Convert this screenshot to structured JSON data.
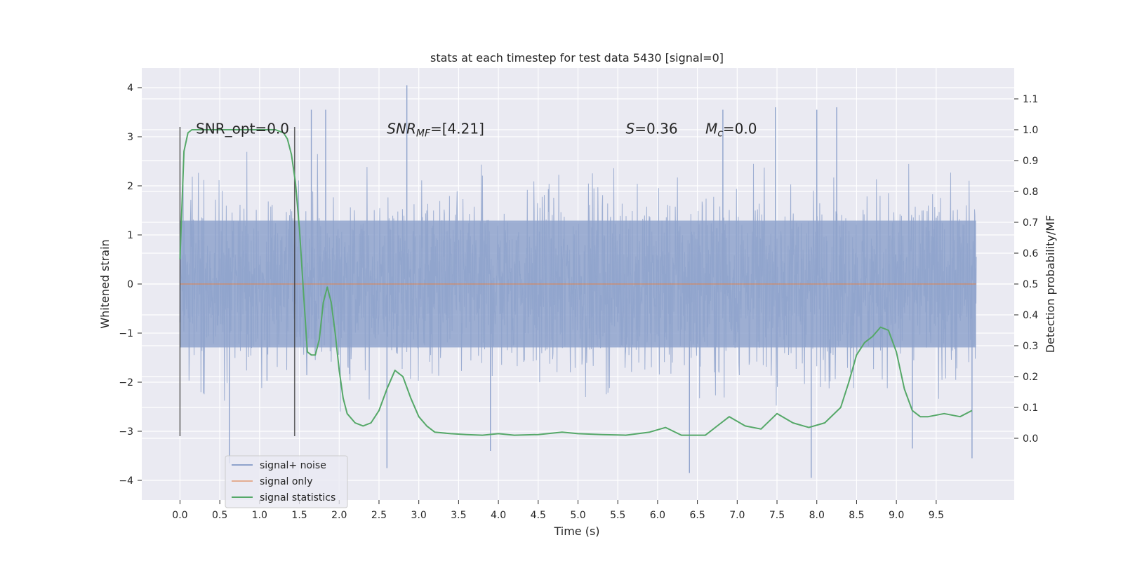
{
  "chart_data": {
    "type": "line",
    "title": "stats at each timestep for test data 5430 [signal=0]",
    "xlabel": "Time (s)",
    "ylabel_left": "Whitened strain",
    "ylabel_right": "Detection probability/MF",
    "xlim": [
      -0.48,
      10.48
    ],
    "ylim_left": [
      -4.4,
      4.4
    ],
    "ylim_right": [
      -0.2,
      1.2
    ],
    "xticks": [
      0.0,
      0.5,
      1.0,
      1.5,
      2.0,
      2.5,
      3.0,
      3.5,
      4.0,
      4.5,
      5.0,
      5.5,
      6.0,
      6.5,
      7.0,
      7.5,
      8.0,
      8.5,
      9.0,
      9.5
    ],
    "xtick_labels": [
      "0.0",
      "0.5",
      "1.0",
      "1.5",
      "2.0",
      "2.5",
      "3.0",
      "3.5",
      "4.0",
      "4.5",
      "5.0",
      "5.5",
      "6.0",
      "6.5",
      "7.0",
      "7.5",
      "8.0",
      "8.5",
      "9.0",
      "9.5"
    ],
    "yticks_left": [
      4,
      3,
      2,
      1,
      0,
      -1,
      -2,
      -3,
      -4
    ],
    "ytick_labels_left": [
      "4",
      "3",
      "2",
      "1",
      "0",
      "−1",
      "−2",
      "−3",
      "−4"
    ],
    "yticks_right": [
      1.1,
      1.0,
      0.9,
      0.8,
      0.7,
      0.6,
      0.5,
      0.4,
      0.3,
      0.2,
      0.1,
      0.0
    ],
    "ytick_labels_right": [
      "1.1",
      "1.0",
      "0.9",
      "0.8",
      "0.7",
      "0.6",
      "0.5",
      "0.4",
      "0.3",
      "0.2",
      "0.1",
      "0.0"
    ],
    "grid": true,
    "legend_position": "lower-left",
    "annotations": [
      {
        "x": 0.2,
        "y": 3.15,
        "label": "SNR_opt=0.0"
      },
      {
        "x": 2.6,
        "y": 3.15,
        "label": "SNR_MF=[4.21]"
      },
      {
        "x": 5.6,
        "y": 3.15,
        "label": "S=0.36"
      },
      {
        "x": 6.6,
        "y": 3.15,
        "label": "M_c=0.0"
      }
    ],
    "vlines": [
      {
        "x": 0.0,
        "y_from": -3.1,
        "y_to": 3.2
      },
      {
        "x": 1.44,
        "y_from": -3.1,
        "y_to": 3.2
      }
    ],
    "series": [
      {
        "name": "signal+ noise",
        "color": "#8fa3cc",
        "axis": "left",
        "x_range": [
          0.0,
          10.0
        ],
        "envelope_typical": [
          -1.9,
          1.9
        ],
        "extremes": [
          {
            "x": 2.85,
            "y": 4.05
          },
          {
            "x": 1.65,
            "y": 3.55
          },
          {
            "x": 1.83,
            "y": 3.55
          },
          {
            "x": 7.48,
            "y": 3.6
          },
          {
            "x": 6.82,
            "y": 3.55
          },
          {
            "x": 8.0,
            "y": 3.55
          },
          {
            "x": 8.25,
            "y": 3.6
          },
          {
            "x": 0.62,
            "y": -3.65
          },
          {
            "x": 2.6,
            "y": -3.75
          },
          {
            "x": 6.4,
            "y": -3.85
          },
          {
            "x": 7.93,
            "y": -3.95
          },
          {
            "x": 9.95,
            "y": -3.55
          },
          {
            "x": 3.9,
            "y": -3.4
          },
          {
            "x": 9.2,
            "y": -3.35
          }
        ]
      },
      {
        "name": "signal only",
        "color": "#dd8452",
        "axis": "left",
        "x": [
          0.0,
          10.0
        ],
        "y": [
          0.0,
          0.0
        ]
      },
      {
        "name": "signal statistics",
        "color": "#55a868",
        "axis": "right",
        "x": [
          0.0,
          0.05,
          0.1,
          0.15,
          0.2,
          0.3,
          0.5,
          0.8,
          1.0,
          1.2,
          1.3,
          1.35,
          1.4,
          1.45,
          1.5,
          1.55,
          1.6,
          1.65,
          1.7,
          1.75,
          1.8,
          1.85,
          1.9,
          1.95,
          2.0,
          2.05,
          2.1,
          2.2,
          2.3,
          2.4,
          2.5,
          2.6,
          2.7,
          2.8,
          2.9,
          3.0,
          3.1,
          3.2,
          3.4,
          3.6,
          3.8,
          4.0,
          4.2,
          4.5,
          4.8,
          5.0,
          5.3,
          5.6,
          5.9,
          6.1,
          6.3,
          6.6,
          6.8,
          6.9,
          7.1,
          7.3,
          7.5,
          7.7,
          7.9,
          8.1,
          8.3,
          8.4,
          8.5,
          8.6,
          8.7,
          8.8,
          8.9,
          9.0,
          9.1,
          9.2,
          9.3,
          9.4,
          9.6,
          9.8,
          9.95
        ],
        "y": [
          0.58,
          0.93,
          0.99,
          1.0,
          1.0,
          1.0,
          1.0,
          1.0,
          1.0,
          1.0,
          0.99,
          0.97,
          0.92,
          0.83,
          0.68,
          0.48,
          0.28,
          0.27,
          0.27,
          0.32,
          0.44,
          0.49,
          0.44,
          0.34,
          0.22,
          0.13,
          0.08,
          0.05,
          0.04,
          0.05,
          0.09,
          0.16,
          0.22,
          0.2,
          0.13,
          0.07,
          0.04,
          0.02,
          0.015,
          0.012,
          0.01,
          0.015,
          0.01,
          0.012,
          0.02,
          0.015,
          0.012,
          0.01,
          0.02,
          0.035,
          0.01,
          0.01,
          0.05,
          0.07,
          0.04,
          0.03,
          0.08,
          0.05,
          0.035,
          0.05,
          0.1,
          0.18,
          0.27,
          0.31,
          0.33,
          0.36,
          0.35,
          0.28,
          0.16,
          0.09,
          0.07,
          0.07,
          0.08,
          0.07,
          0.09
        ]
      }
    ]
  }
}
